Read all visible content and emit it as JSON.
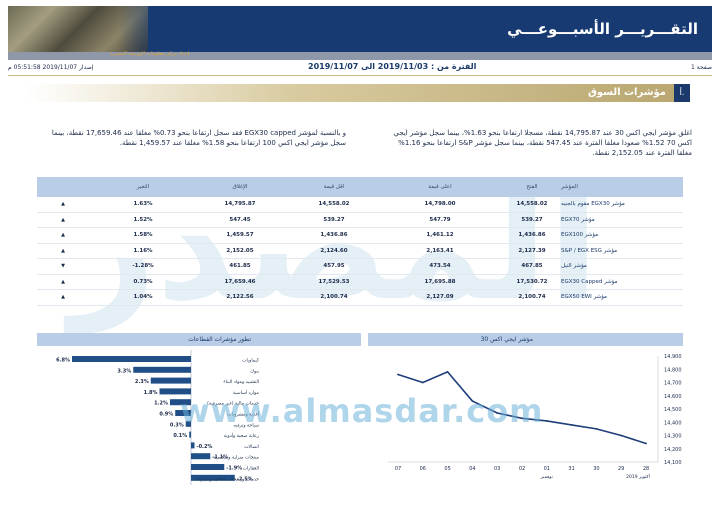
{
  "header": {
    "title": "التقـــريـــر الأسبـــوعـــي",
    "subtitle": "إعداد مركز معلومات البورصة المصرية"
  },
  "meta": {
    "page": "صفحة 1",
    "period": "الفترة من : 2019/11/03 الى 2019/11/07",
    "issued": "إصدار 2019/11/07 05:51:58 م"
  },
  "section": {
    "number": "أ.",
    "title": "مؤشرات السوق"
  },
  "paragraphs": {
    "right": "اغلق مؤشر ايجي اكس 30 عند 14,795.87 نقطة، مسجلا ارتفاعا بنحو 1.63%، بينما سجل مؤشر ايجي اكس 70 1.52% صعودا مغلقا الفترة عند 547.45 نقطة، بينما سجل مؤشر S&P ارتفاعا بنحو 1.16% مغلقا الفترة عند 2,152.05 نقطة.",
    "left": "و بالنسبة لمؤشر EGX30 capped فقد سجل ارتفاعا بنحو 0.73% مغلقا عند 17,659.46 نقطة، بينما سجل مؤشر ايجي اكس 100 ارتفاعا بنحو 1.58% مغلقا عند 1,459.57 نقطة."
  },
  "watermark": {
    "text": "www.almasdar.com",
    "arabic": "المصدر"
  },
  "table": {
    "headers": {
      "name": "المؤشر",
      "prev": "الفتح",
      "high": "اعلى قيمة",
      "low": "اقل قيمة",
      "close": "الإغلاق",
      "change": "التغير"
    },
    "rows": [
      {
        "name": "مؤشر EGX30 مقوم بالجنيه",
        "prev": "14,558.02",
        "high": "14,798.00",
        "low": "14,558.02",
        "close": "14,795.87",
        "change": "1.63%",
        "dir": "up"
      },
      {
        "name": "مؤشر EGX70",
        "prev": "539.27",
        "high": "547.79",
        "low": "539.27",
        "close": "547.45",
        "change": "1.52%",
        "dir": "up"
      },
      {
        "name": "مؤشر EGX100",
        "prev": "1,436.86",
        "high": "1,461.12",
        "low": "1,436.86",
        "close": "1,459.57",
        "change": "1.58%",
        "dir": "up"
      },
      {
        "name": "مؤشر S&P / EGX ESG",
        "prev": "2,127.39",
        "high": "2,163.41",
        "low": "2,124.60",
        "close": "2,152.05",
        "change": "1.16%",
        "dir": "up"
      },
      {
        "name": "مؤشر النيل",
        "prev": "467.85",
        "high": "473.54",
        "low": "457.95",
        "close": "461.85",
        "change": "-1.28%",
        "dir": "down"
      },
      {
        "name": "مؤشر EGX30 Capped",
        "prev": "17,530.72",
        "high": "17,695.88",
        "low": "17,529.53",
        "close": "17,659.46",
        "change": "0.73%",
        "dir": "up"
      },
      {
        "name": "مؤشر EGX50 EWI",
        "prev": "2,100.74",
        "high": "2,127.09",
        "low": "2,100.74",
        "close": "2,122.56",
        "change": "1.04%",
        "dir": "up"
      }
    ],
    "arrow_up": "▲",
    "arrow_down": "▼"
  },
  "panels": {
    "sectors_title": "تطور مؤشرات القطاعات",
    "egx30_title": "مؤشر ايجي اكس 30"
  },
  "chart_data": [
    {
      "type": "bar",
      "title": "تطور مؤشرات القطاعات",
      "categories": [
        "كيماويات",
        "بنوك",
        "التشييد ومواد البناء",
        "موارد أساسية",
        "خدمات مالية (غير مصرفية)",
        "أغذية ومشروبات",
        "سياحة وترفيه",
        "رعاية صحية وأدوية",
        "اتصالات",
        "منتجات منزلية وشخصية",
        "العقارات",
        "خدمات ومنتجات صناعية وسيارات"
      ],
      "labels": [
        "6.8%",
        "3.3%",
        "2.3%",
        "1.8%",
        "1.2%",
        "0.9%",
        "0.3%",
        "0.1%",
        "-0.2%",
        "-1.1%",
        "-1.9%",
        "-2.5%"
      ],
      "values": [
        6.8,
        3.3,
        2.3,
        1.8,
        1.2,
        0.9,
        0.3,
        0.1,
        -0.2,
        -1.1,
        -1.9,
        -2.5
      ],
      "color": "#1f4f86"
    },
    {
      "type": "line",
      "title": "مؤشر ايجي اكس 30",
      "x": [
        "28",
        "29",
        "30",
        "31",
        "01",
        "02",
        "03",
        "04",
        "05",
        "06",
        "07"
      ],
      "x_group_labels": [
        "أكتوبر 2019",
        "نوفمبر"
      ],
      "y_ticks": [
        "14,900",
        "14,800",
        "14,700",
        "14,600",
        "14,500",
        "14,400",
        "14,300",
        "14,200",
        "14,100"
      ],
      "values": [
        14240,
        14300,
        14350,
        14380,
        14410,
        14430,
        14470,
        14560,
        14780,
        14700,
        14760
      ],
      "ylim": [
        14100,
        14900
      ],
      "color": "#1f3f7a"
    }
  ]
}
